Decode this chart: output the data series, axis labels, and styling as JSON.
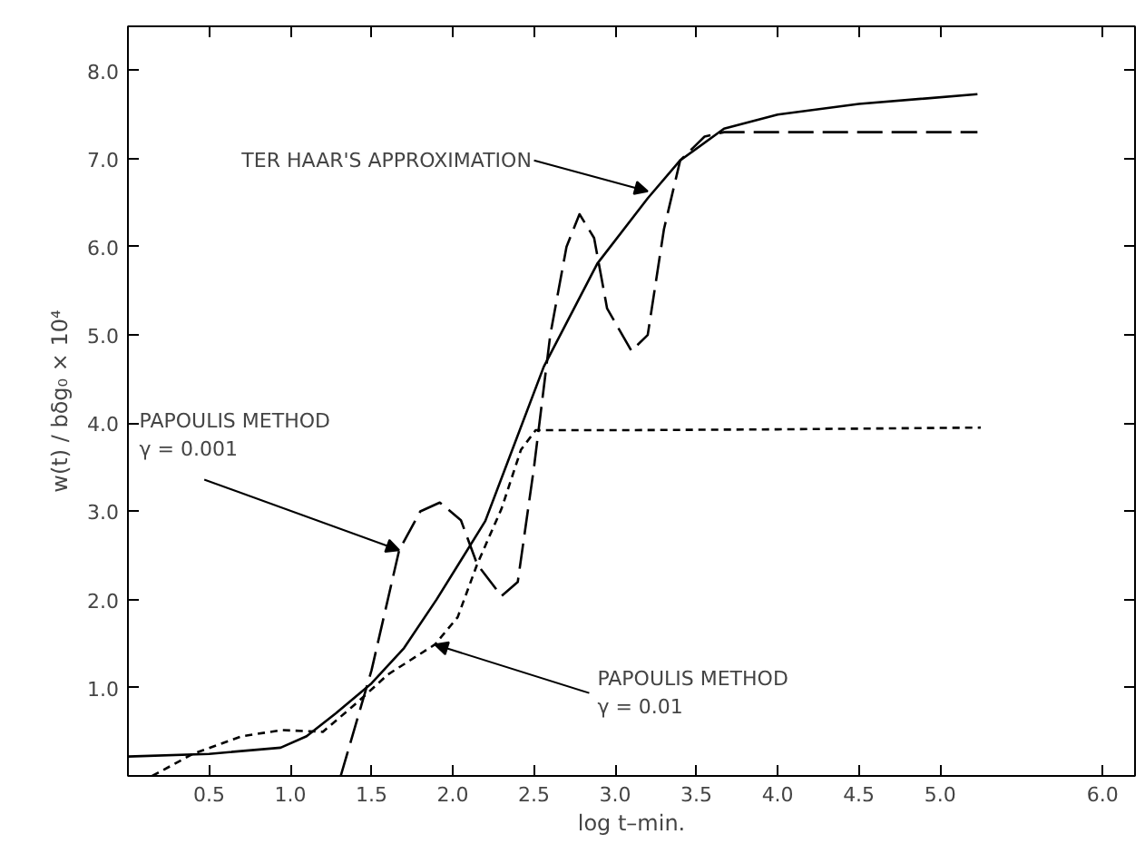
{
  "chart_data": {
    "type": "line",
    "xlabel": "log t–min.",
    "ylabel": "w(t) / bδg₀ × 10⁴",
    "xlim": [
      0,
      6.2
    ],
    "ylim": [
      0,
      8.5
    ],
    "xticks": [
      {
        "value": 0.5,
        "label": "0.5"
      },
      {
        "value": 1,
        "label": "1.0"
      },
      {
        "value": 1.5,
        "label": "1.5"
      },
      {
        "value": 2,
        "label": "2.0"
      },
      {
        "value": 2.5,
        "label": "2.5"
      },
      {
        "value": 3,
        "label": "3.0"
      },
      {
        "value": 3.5,
        "label": "3.5"
      },
      {
        "value": 4,
        "label": "4.0"
      },
      {
        "value": 4.5,
        "label": "4.5"
      },
      {
        "value": 5,
        "label": "5.0"
      },
      {
        "value": 6,
        "label": "6.0"
      }
    ],
    "yticks": [
      {
        "value": 1,
        "label": "1.0"
      },
      {
        "value": 2,
        "label": "2.0"
      },
      {
        "value": 3,
        "label": "3.0"
      },
      {
        "value": 4,
        "label": "4.0"
      },
      {
        "value": 5,
        "label": "5.0"
      },
      {
        "value": 6,
        "label": "6.0"
      },
      {
        "value": 7,
        "label": "7.0"
      },
      {
        "value": 8,
        "label": "8.0"
      }
    ],
    "grid": false,
    "marker": "none",
    "series": [
      {
        "color": "#000000",
        "line_style": "solid",
        "x": [
          0,
          0.5,
          0.94,
          1.1,
          1.28,
          1.5,
          1.7,
          1.9,
          2.2,
          2.56,
          2.89,
          3.2,
          3.4,
          3.67,
          4.0,
          4.5,
          5.23
        ],
        "values": [
          0.22,
          0.25,
          0.32,
          0.45,
          0.71,
          1.05,
          1.45,
          2.0,
          2.89,
          4.64,
          5.81,
          6.55,
          6.98,
          7.34,
          7.5,
          7.62,
          7.73
        ]
      },
      {
        "color": "#000000",
        "line_style": "long_dashed",
        "x": [
          1.31,
          1.5,
          1.67,
          1.8,
          1.92,
          2.05,
          2.15,
          2.3,
          2.4,
          2.5,
          2.6,
          2.7,
          2.78,
          2.87,
          2.95,
          3.1,
          3.2,
          3.3,
          3.4,
          3.55,
          3.67,
          5.23
        ],
        "values": [
          0,
          1.2,
          2.56,
          3.0,
          3.1,
          2.9,
          2.4,
          2.04,
          2.2,
          3.5,
          5.0,
          6.0,
          6.37,
          6.1,
          5.3,
          4.82,
          5.0,
          6.2,
          6.98,
          7.25,
          7.3,
          7.3
        ]
      },
      {
        "color": "#000000",
        "line_style": "dashed",
        "x": [
          0.15,
          0.4,
          0.7,
          0.95,
          1.2,
          1.41,
          1.6,
          1.89,
          2.03,
          2.15,
          2.3,
          2.42,
          2.51,
          3.0,
          4.0,
          5.25
        ],
        "values": [
          0,
          0.25,
          0.45,
          0.52,
          0.5,
          0.83,
          1.15,
          1.49,
          1.8,
          2.4,
          3.03,
          3.7,
          3.92,
          3.92,
          3.93,
          3.95
        ]
      }
    ],
    "annotations": [
      {
        "text": "TER HAAR'S APPROXIMATION",
        "x": 3.2,
        "y": 6.63
      },
      {
        "text": "PAPOULIS METHOD\nγ = 0.001",
        "x": 1.67,
        "y": 2.56
      },
      {
        "text": "PAPOULIS METHOD\nγ = 0.01",
        "x": 1.89,
        "y": 1.49
      }
    ]
  }
}
